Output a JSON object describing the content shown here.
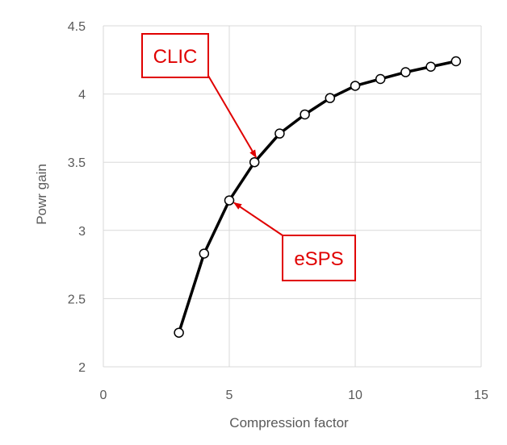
{
  "chart_data": {
    "type": "line",
    "title": "",
    "xlabel": "Compression factor",
    "ylabel": "Powr gain",
    "xlim": [
      0,
      15
    ],
    "ylim": [
      2,
      4.5
    ],
    "xticks": [
      0,
      5,
      10,
      15
    ],
    "yticks": [
      2,
      2.5,
      3,
      3.5,
      4,
      4.5
    ],
    "xtick_labels": [
      "0",
      "5",
      "10",
      "15"
    ],
    "ytick_labels": [
      "2",
      "2.5",
      "3",
      "3.5",
      "4",
      "4.5"
    ],
    "grid": true,
    "series": [
      {
        "x": [
          3,
          4,
          5,
          6,
          7,
          8,
          9,
          10,
          11,
          12,
          13,
          14
        ],
        "y": [
          2.25,
          2.83,
          3.22,
          3.5,
          3.71,
          3.85,
          3.97,
          4.06,
          4.11,
          4.16,
          4.2,
          4.24
        ],
        "color": "#000000",
        "marker": "open-circle"
      }
    ],
    "annotations": [
      {
        "text": "CLIC",
        "x": 6,
        "y": 3.5,
        "color": "#e00000"
      },
      {
        "text": "eSPS",
        "x": 5,
        "y": 3.22,
        "color": "#e00000"
      }
    ]
  }
}
